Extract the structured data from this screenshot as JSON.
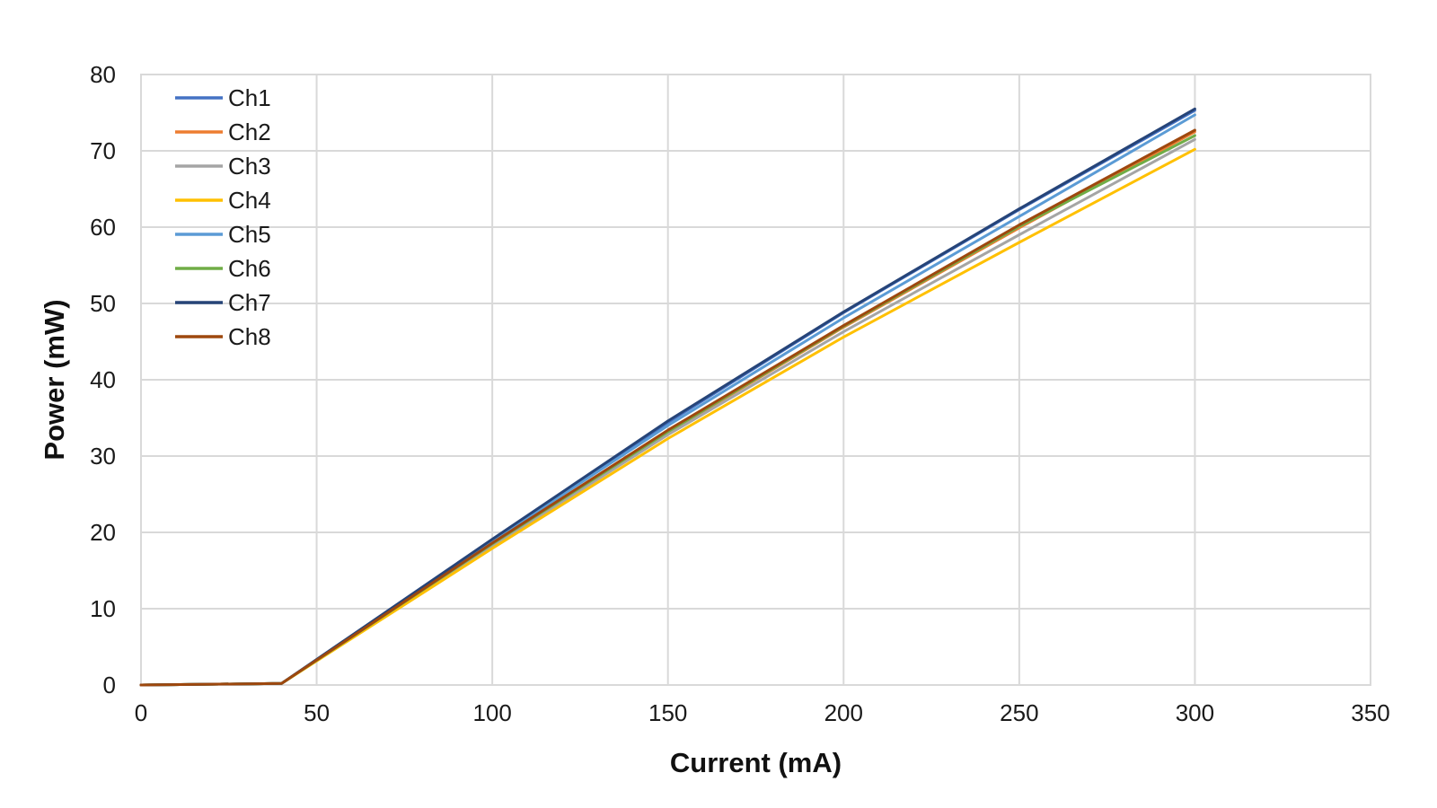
{
  "chart_data": {
    "type": "line",
    "title": "",
    "xlabel": "Current (mA)",
    "ylabel": "Power (mW)",
    "xlim": [
      0,
      350
    ],
    "ylim": [
      0,
      80
    ],
    "x_ticks": [
      0,
      50,
      100,
      150,
      200,
      250,
      300,
      350
    ],
    "y_ticks": [
      0,
      10,
      20,
      30,
      40,
      50,
      60,
      70,
      80
    ],
    "grid": true,
    "legend_position": "top-left",
    "series": [
      {
        "name": "Ch1",
        "color": "#4472C4",
        "x": [
          0,
          40,
          100,
          150,
          200,
          250,
          300
        ],
        "y": [
          0,
          0.2,
          19.0,
          34.4,
          48.8,
          62.3,
          75.3
        ]
      },
      {
        "name": "Ch2",
        "color": "#ED7D31",
        "x": [
          0,
          40,
          100,
          150,
          200,
          250,
          300
        ],
        "y": [
          0,
          0.2,
          18.4,
          33.1,
          46.9,
          59.9,
          72.5
        ]
      },
      {
        "name": "Ch3",
        "color": "#A5A5A5",
        "x": [
          0,
          40,
          100,
          150,
          200,
          250,
          300
        ],
        "y": [
          0,
          0.2,
          18.2,
          32.8,
          46.3,
          59.0,
          71.5
        ]
      },
      {
        "name": "Ch4",
        "color": "#FFC000",
        "x": [
          0,
          40,
          100,
          150,
          200,
          250,
          300
        ],
        "y": [
          0,
          0.2,
          17.9,
          32.3,
          45.6,
          58.0,
          70.2
        ]
      },
      {
        "name": "Ch5",
        "color": "#5B9BD5",
        "x": [
          0,
          40,
          100,
          150,
          200,
          250,
          300
        ],
        "y": [
          0,
          0.2,
          18.9,
          34.0,
          48.1,
          61.4,
          74.7
        ]
      },
      {
        "name": "Ch6",
        "color": "#70AD47",
        "x": [
          0,
          40,
          100,
          150,
          200,
          250,
          300
        ],
        "y": [
          0,
          0.2,
          18.5,
          33.2,
          47.0,
          60.1,
          72.0
        ]
      },
      {
        "name": "Ch7",
        "color": "#264478",
        "x": [
          0,
          40,
          100,
          150,
          200,
          250,
          300
        ],
        "y": [
          0,
          0.2,
          19.1,
          34.6,
          48.9,
          62.4,
          75.5
        ]
      },
      {
        "name": "Ch8",
        "color": "#9E480E",
        "x": [
          0,
          40,
          100,
          150,
          200,
          250,
          300
        ],
        "y": [
          0,
          0.2,
          18.6,
          33.4,
          47.1,
          60.3,
          72.7
        ]
      }
    ]
  }
}
